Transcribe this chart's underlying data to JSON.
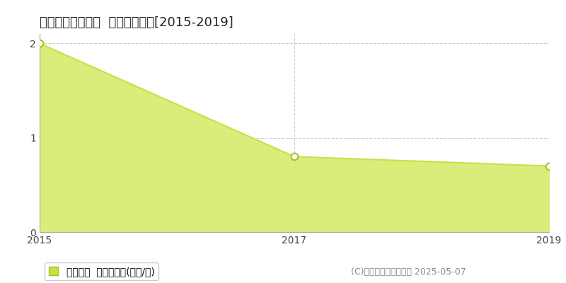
{
  "title": "高島市マキノ町下  土地価格推移[2015-2019]",
  "years": [
    2015,
    2017,
    2019
  ],
  "values": [
    2.0,
    0.8,
    0.7
  ],
  "line_color": "#c8e04a",
  "fill_color": "#d8ed7a",
  "marker_color": "#ffffff",
  "marker_edge_color": "#a8c020",
  "xlim": [
    2015,
    2019
  ],
  "ylim": [
    0,
    2.1
  ],
  "yticks": [
    0,
    1,
    2
  ],
  "xticks": [
    2015,
    2017,
    2019
  ],
  "grid_color": "#cccccc",
  "background_color": "#ffffff",
  "legend_label": "土地価格  平均坪単価(万円/坪)",
  "copyright_text": "(C)土地価格ドットコム 2025-05-07",
  "title_fontsize": 13,
  "tick_fontsize": 10,
  "legend_fontsize": 10,
  "copyright_fontsize": 9
}
